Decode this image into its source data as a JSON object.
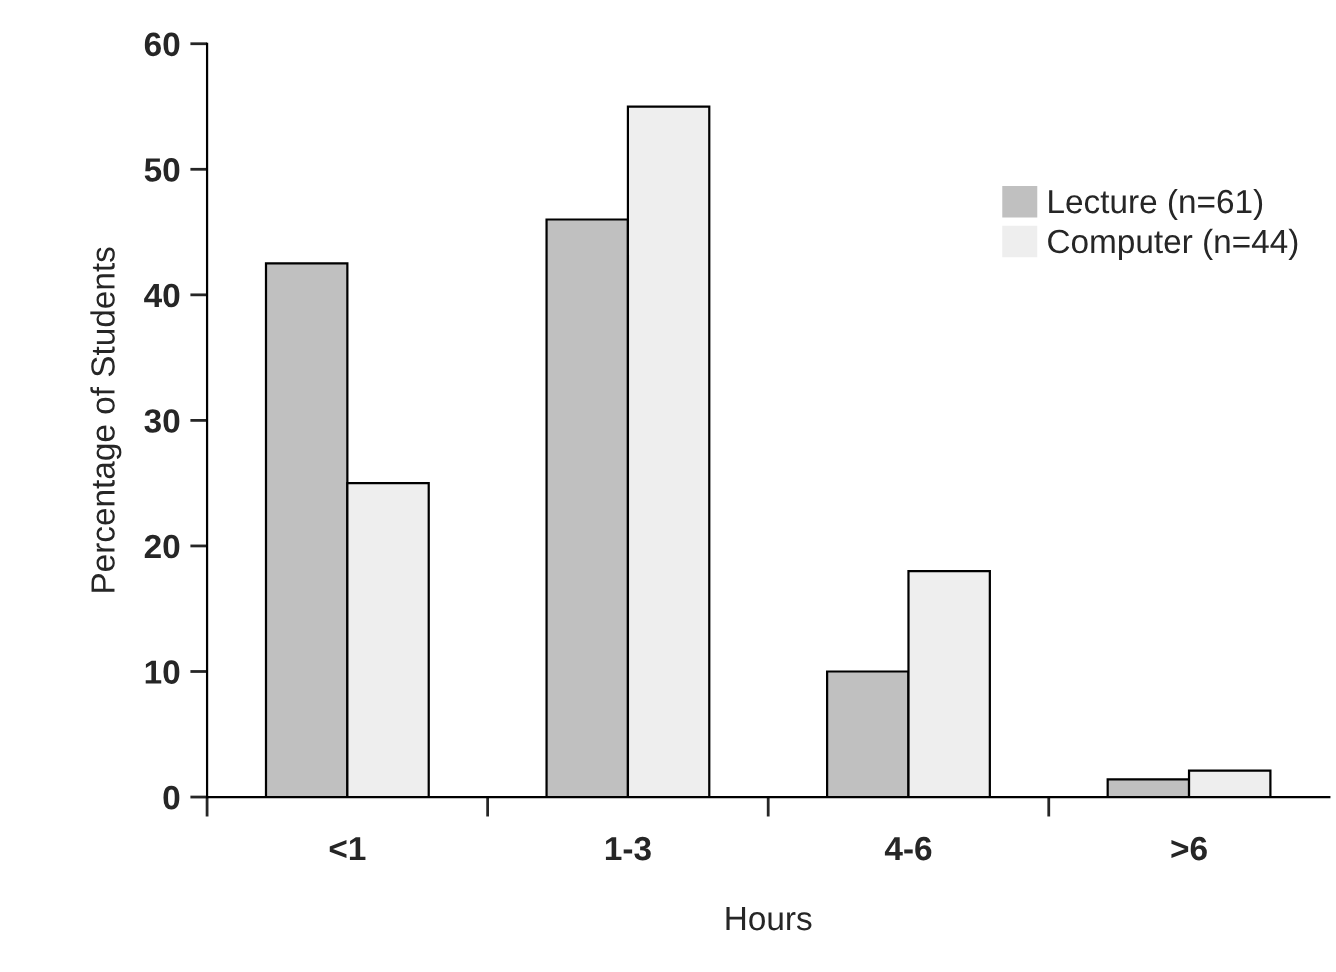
{
  "chart_data": {
    "type": "bar",
    "xlabel": "Hours",
    "ylabel": "Percentage of Students",
    "categories": [
      "<1",
      "1-3",
      "4-6",
      ">6"
    ],
    "series": [
      {
        "name": "Lecture (n=61)",
        "color": "#c0c0c0",
        "values": [
          42.5,
          46.0,
          10.0,
          1.4
        ]
      },
      {
        "name": "Computer (n=44)",
        "color": "#eeeeee",
        "values": [
          25.0,
          55.0,
          18.0,
          2.1
        ]
      }
    ],
    "ylim": [
      0,
      60
    ],
    "yticks": [
      0,
      10,
      20,
      30,
      40,
      50,
      60
    ],
    "grid": false,
    "legend": "top right"
  }
}
